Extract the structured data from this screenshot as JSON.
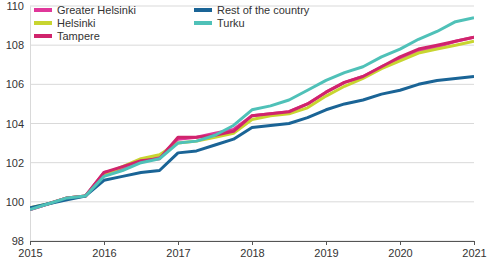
{
  "chart_data": {
    "type": "line",
    "x": [
      2015,
      2015.25,
      2015.5,
      2015.75,
      2016,
      2016.25,
      2016.5,
      2016.75,
      2017,
      2017.25,
      2017.5,
      2017.75,
      2018,
      2018.25,
      2018.5,
      2018.75,
      2019,
      2019.25,
      2019.5,
      2019.75,
      2020,
      2020.25,
      2020.5,
      2020.75,
      2021
    ],
    "series": [
      {
        "name": "Greater Helsinki",
        "color": "#e0379a",
        "values": [
          99.6,
          99.9,
          100.2,
          100.3,
          101.5,
          101.7,
          102.1,
          102.3,
          103.2,
          103.3,
          103.5,
          103.7,
          104.4,
          104.5,
          104.6,
          105.0,
          105.6,
          106.1,
          106.4,
          106.9,
          107.3,
          107.7,
          107.9,
          108.2,
          108.4
        ]
      },
      {
        "name": "Helsinki",
        "color": "#c8d530",
        "values": [
          99.7,
          99.9,
          100.2,
          100.3,
          101.4,
          101.8,
          102.2,
          102.4,
          103.0,
          103.1,
          103.3,
          103.5,
          104.2,
          104.4,
          104.5,
          104.8,
          105.4,
          105.9,
          106.3,
          106.8,
          107.2,
          107.6,
          107.8,
          108.0,
          108.2
        ]
      },
      {
        "name": "Tampere",
        "color": "#d0246c",
        "values": [
          99.6,
          99.9,
          100.2,
          100.3,
          101.5,
          101.8,
          102.1,
          102.2,
          103.3,
          103.3,
          103.4,
          103.6,
          104.4,
          104.5,
          104.6,
          105.0,
          105.6,
          106.1,
          106.4,
          106.9,
          107.4,
          107.8,
          108.0,
          108.2,
          108.4
        ]
      },
      {
        "name": "Rest of the country",
        "color": "#1a6496",
        "values": [
          99.7,
          99.9,
          100.1,
          100.3,
          101.1,
          101.3,
          101.5,
          101.6,
          102.5,
          102.6,
          102.9,
          103.2,
          103.8,
          103.9,
          104.0,
          104.3,
          104.7,
          105.0,
          105.2,
          105.5,
          105.7,
          106.0,
          106.2,
          106.3,
          106.4
        ]
      },
      {
        "name": "Turku",
        "color": "#4fc1b8",
        "values": [
          99.6,
          99.9,
          100.2,
          100.3,
          101.3,
          101.6,
          102.0,
          102.2,
          103.0,
          103.1,
          103.4,
          103.9,
          104.7,
          104.9,
          105.2,
          105.7,
          106.2,
          106.6,
          106.9,
          107.4,
          107.8,
          108.3,
          108.7,
          109.2,
          109.4
        ]
      }
    ],
    "xlim": [
      2015,
      2021
    ],
    "xticks": [
      2015,
      2016,
      2017,
      2018,
      2019,
      2020,
      2021
    ],
    "ylim": [
      98,
      110
    ],
    "yticks": [
      98,
      100,
      102,
      104,
      106,
      108,
      110
    ],
    "grid": true,
    "legend": "top-left"
  }
}
